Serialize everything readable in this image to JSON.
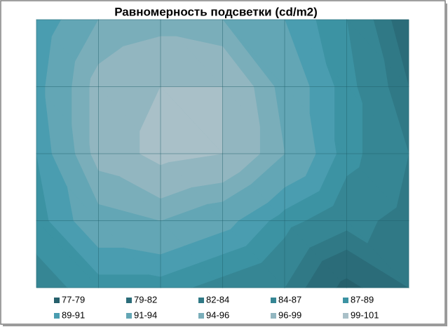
{
  "chart_data": {
    "type": "contour",
    "title": "Равномерность подсветки (cd/m2)",
    "z": [
      [
        89,
        94,
        95,
        94,
        91,
        87,
        80
      ],
      [
        90,
        97,
        99,
        99,
        93,
        88,
        82
      ],
      [
        89,
        97,
        100,
        99,
        94,
        88,
        84
      ],
      [
        88,
        93,
        94,
        92,
        88,
        85,
        83
      ],
      [
        86,
        88,
        88,
        86,
        84,
        78,
        82
      ]
    ],
    "series": [
      {
        "name": "77-79",
        "range": [
          77,
          79
        ],
        "color": "#26606c"
      },
      {
        "name": "79-82",
        "range": [
          79,
          82
        ],
        "color": "#2b6c79"
      },
      {
        "name": "82-84",
        "range": [
          82,
          84
        ],
        "color": "#307986"
      },
      {
        "name": "84-87",
        "range": [
          84,
          87
        ],
        "color": "#368694"
      },
      {
        "name": "87-89",
        "range": [
          87,
          89
        ],
        "color": "#3c93a3"
      },
      {
        "name": "89-91",
        "range": [
          89,
          91
        ],
        "color": "#4a9db0"
      },
      {
        "name": "91-94",
        "range": [
          91,
          94
        ],
        "color": "#63a6b5"
      },
      {
        "name": "94-96",
        "range": [
          94,
          96
        ],
        "color": "#7aaeba"
      },
      {
        "name": "96-99",
        "range": [
          96,
          99
        ],
        "color": "#92b6c0"
      },
      {
        "name": "99-101",
        "range": [
          99,
          101
        ],
        "color": "#a9c0c8"
      }
    ]
  }
}
